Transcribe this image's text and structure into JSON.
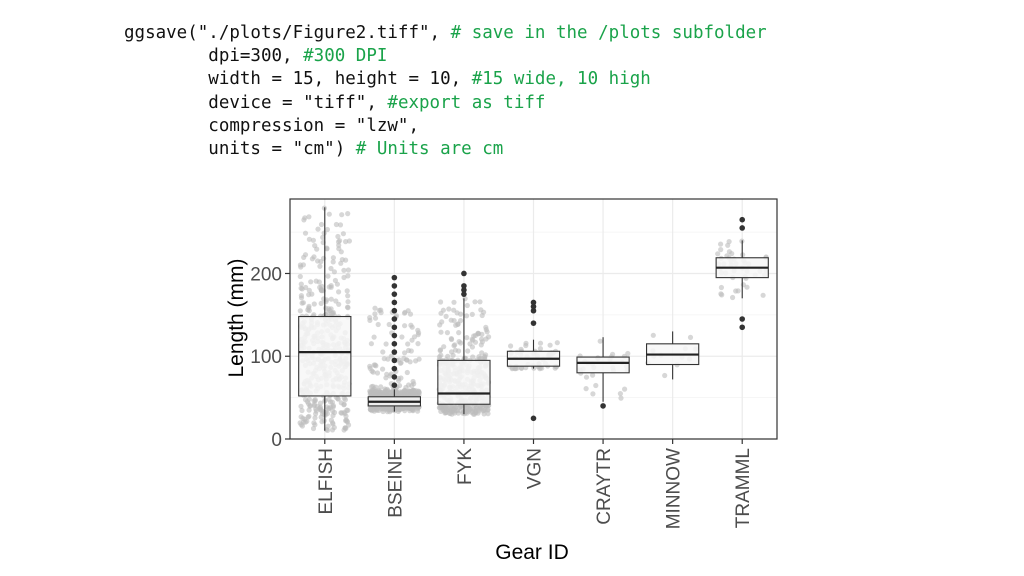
{
  "code": {
    "lines": [
      {
        "indent": "",
        "code": "ggsave(\"./plots/Figure2.tiff\", ",
        "comment": "# save in the /plots subfolder"
      },
      {
        "indent": "        ",
        "code": "dpi=300, ",
        "comment": "#300 DPI"
      },
      {
        "indent": "        ",
        "code": "width = 15, height = 10, ",
        "comment": "#15 wide, 10 high"
      },
      {
        "indent": "        ",
        "code": "device = \"tiff\", ",
        "comment": "#export as tiff"
      },
      {
        "indent": "        ",
        "code": "compression = \"lzw\",",
        "comment": ""
      },
      {
        "indent": "        ",
        "code": "units = \"cm\") ",
        "comment": "# Units are cm"
      }
    ],
    "text_color": "#111111",
    "comment_color": "#1aa34a"
  },
  "chart_data": {
    "type": "box",
    "xlabel": "Gear ID",
    "ylabel": "Length (mm)",
    "ylim": [
      0,
      290
    ],
    "yticks": [
      0,
      100,
      200
    ],
    "grid": true,
    "categories": [
      "ELFISH",
      "BSEINE",
      "FYK",
      "VGN",
      "CRAYTR",
      "MINNOW",
      "TRAMML"
    ],
    "boxes": [
      {
        "category": "ELFISH",
        "min": 10,
        "q1": 52,
        "median": 105,
        "q3": 148,
        "max": 280,
        "outliers": []
      },
      {
        "category": "BSEINE",
        "min": 33,
        "q1": 40,
        "median": 45,
        "q3": 51,
        "max": 60,
        "outliers": [
          65,
          75,
          85,
          95,
          105,
          115,
          125,
          135,
          145,
          155,
          165,
          175,
          185,
          195
        ]
      },
      {
        "category": "FYK",
        "min": 30,
        "q1": 42,
        "median": 55,
        "q3": 95,
        "max": 170,
        "outliers": [
          175,
          180,
          185,
          200
        ]
      },
      {
        "category": "VGN",
        "min": 85,
        "q1": 88,
        "median": 97,
        "q3": 106,
        "max": 120,
        "outliers": [
          25,
          140,
          155,
          160,
          165
        ]
      },
      {
        "category": "CRAYTR",
        "min": 45,
        "q1": 80,
        "median": 92,
        "q3": 99,
        "max": 123,
        "outliers": [
          40
        ]
      },
      {
        "category": "MINNOW",
        "min": 72,
        "q1": 90,
        "median": 102,
        "q3": 115,
        "max": 130,
        "outliers": []
      },
      {
        "category": "TRAMML",
        "min": 170,
        "q1": 195,
        "median": 207,
        "q3": 219,
        "max": 240,
        "outliers": [
          135,
          145,
          255,
          265
        ]
      }
    ],
    "colors": {
      "box_fill": "#f7f7f7",
      "box_stroke": "#333333",
      "jitter": "#bdbdbd",
      "outlier": "#333333",
      "grid": "#ebebeb",
      "panel_border": "#333333"
    }
  }
}
